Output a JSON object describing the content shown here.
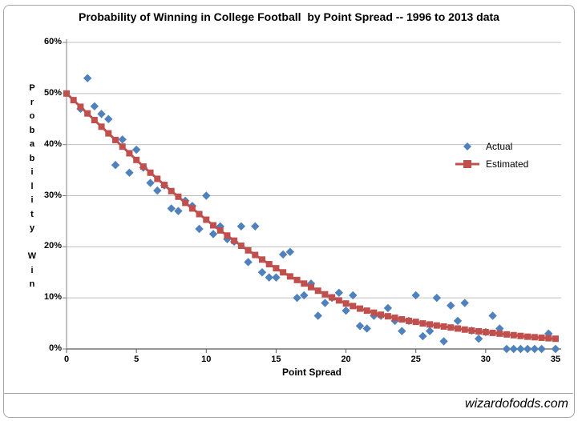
{
  "page": {
    "footer": "wizardofodds.com"
  },
  "chart_data": {
    "type": "scatter",
    "title": "Probability of Winning in College Football  by Point Spread -- 1996 to 2013 data",
    "xlabel": "Point Spread",
    "ylabel": "Probability Win",
    "xlim": [
      0,
      35
    ],
    "ylim": [
      0,
      60
    ],
    "x_ticks": [
      0,
      5,
      10,
      15,
      20,
      25,
      30,
      35
    ],
    "y_tick_values": [
      0,
      10,
      20,
      30,
      40,
      50,
      60
    ],
    "y_tick_labels": [
      "0%",
      "10%",
      "20%",
      "30%",
      "40%",
      "50%",
      "60%"
    ],
    "grid": "horizontal",
    "legend_position": "right-center",
    "colors": {
      "actual": "#4F81BD",
      "estimated": "#C0504D",
      "gridline": "#BFBFBF",
      "axis": "#808080"
    },
    "series": [
      {
        "name": "Actual",
        "marker": "diamond",
        "color": "#4F81BD",
        "points": [
          [
            1,
            47
          ],
          [
            1.5,
            53
          ],
          [
            2,
            47.5
          ],
          [
            2.5,
            46
          ],
          [
            3,
            45
          ],
          [
            3.5,
            36
          ],
          [
            4,
            41
          ],
          [
            4.5,
            34.5
          ],
          [
            5,
            39
          ],
          [
            5.5,
            35.5
          ],
          [
            6,
            32.5
          ],
          [
            6.5,
            31
          ],
          [
            7,
            32
          ],
          [
            7.5,
            27.5
          ],
          [
            8,
            27
          ],
          [
            8.5,
            29
          ],
          [
            9,
            28
          ],
          [
            9.5,
            23.5
          ],
          [
            10,
            30
          ],
          [
            10.5,
            22.5
          ],
          [
            11,
            24
          ],
          [
            11.5,
            21.5
          ],
          [
            12,
            21
          ],
          [
            12.5,
            24
          ],
          [
            13,
            17
          ],
          [
            13.5,
            24
          ],
          [
            14,
            15
          ],
          [
            14.5,
            14
          ],
          [
            15,
            14
          ],
          [
            15.5,
            18.5
          ],
          [
            16,
            19
          ],
          [
            16.5,
            10
          ],
          [
            17,
            10.5
          ],
          [
            17.5,
            12.8
          ],
          [
            18,
            6.5
          ],
          [
            18.5,
            9
          ],
          [
            19,
            10
          ],
          [
            19.5,
            11
          ],
          [
            20,
            7.5
          ],
          [
            20.5,
            10.5
          ],
          [
            21,
            4.5
          ],
          [
            21.5,
            4
          ],
          [
            22,
            6.5
          ],
          [
            22.5,
            6.5
          ],
          [
            23,
            8
          ],
          [
            23.5,
            5.5
          ],
          [
            24,
            3.5
          ],
          [
            24.5,
            5.5
          ],
          [
            25,
            10.5
          ],
          [
            25.5,
            2.5
          ],
          [
            26,
            3.5
          ],
          [
            26.5,
            10
          ],
          [
            27,
            1.5
          ],
          [
            27.5,
            8.5
          ],
          [
            28,
            5.5
          ],
          [
            28.5,
            9
          ],
          [
            29,
            3.6
          ],
          [
            29.5,
            2
          ],
          [
            30,
            3.3
          ],
          [
            30.5,
            6.5
          ],
          [
            31,
            4
          ],
          [
            31.5,
            0
          ],
          [
            32,
            0
          ],
          [
            32.5,
            0
          ],
          [
            33,
            0
          ],
          [
            33.5,
            0
          ],
          [
            34,
            0
          ],
          [
            34.5,
            3
          ],
          [
            35,
            0
          ]
        ]
      },
      {
        "name": "Estimated",
        "marker": "square-line",
        "color": "#C0504D",
        "points": [
          [
            0,
            50
          ],
          [
            0.5,
            48.7
          ],
          [
            1,
            47.4
          ],
          [
            1.5,
            46.1
          ],
          [
            2,
            44.8
          ],
          [
            2.5,
            43.5
          ],
          [
            3,
            42.2
          ],
          [
            3.5,
            40.9
          ],
          [
            4,
            39.6
          ],
          [
            4.5,
            38.3
          ],
          [
            5,
            37
          ],
          [
            5.5,
            35.7
          ],
          [
            6,
            34.5
          ],
          [
            6.5,
            33.3
          ],
          [
            7,
            32.1
          ],
          [
            7.5,
            30.9
          ],
          [
            8,
            29.8
          ],
          [
            8.5,
            28.6
          ],
          [
            9,
            27.5
          ],
          [
            9.5,
            26.4
          ],
          [
            10,
            25.3
          ],
          [
            10.5,
            24.2
          ],
          [
            11,
            23.2
          ],
          [
            11.5,
            22.2
          ],
          [
            12,
            21.2
          ],
          [
            12.5,
            20.2
          ],
          [
            13,
            19.3
          ],
          [
            13.5,
            18.4
          ],
          [
            14,
            17.5
          ],
          [
            14.5,
            16.6
          ],
          [
            15,
            15.8
          ],
          [
            15.5,
            15
          ],
          [
            16,
            14.2
          ],
          [
            16.5,
            13.5
          ],
          [
            17,
            12.8
          ],
          [
            17.5,
            12.1
          ],
          [
            18,
            11.4
          ],
          [
            18.5,
            10.7
          ],
          [
            19,
            10.1
          ],
          [
            19.5,
            9.5
          ],
          [
            20,
            8.9
          ],
          [
            20.5,
            8.4
          ],
          [
            21,
            7.9
          ],
          [
            21.5,
            7.5
          ],
          [
            22,
            7.1
          ],
          [
            22.5,
            6.7
          ],
          [
            23,
            6.4
          ],
          [
            23.5,
            6.1
          ],
          [
            24,
            5.8
          ],
          [
            24.5,
            5.5
          ],
          [
            25,
            5.3
          ],
          [
            25.5,
            5
          ],
          [
            26,
            4.8
          ],
          [
            26.5,
            4.6
          ],
          [
            27,
            4.4
          ],
          [
            27.5,
            4.2
          ],
          [
            28,
            4
          ],
          [
            28.5,
            3.8
          ],
          [
            29,
            3.6
          ],
          [
            29.5,
            3.45
          ],
          [
            30,
            3.3
          ],
          [
            30.5,
            3.15
          ],
          [
            31,
            3
          ],
          [
            31.5,
            2.85
          ],
          [
            32,
            2.7
          ],
          [
            32.5,
            2.55
          ],
          [
            33,
            2.4
          ],
          [
            33.5,
            2.3
          ],
          [
            34,
            2.2
          ],
          [
            34.5,
            2.1
          ],
          [
            35,
            2
          ]
        ]
      }
    ]
  }
}
